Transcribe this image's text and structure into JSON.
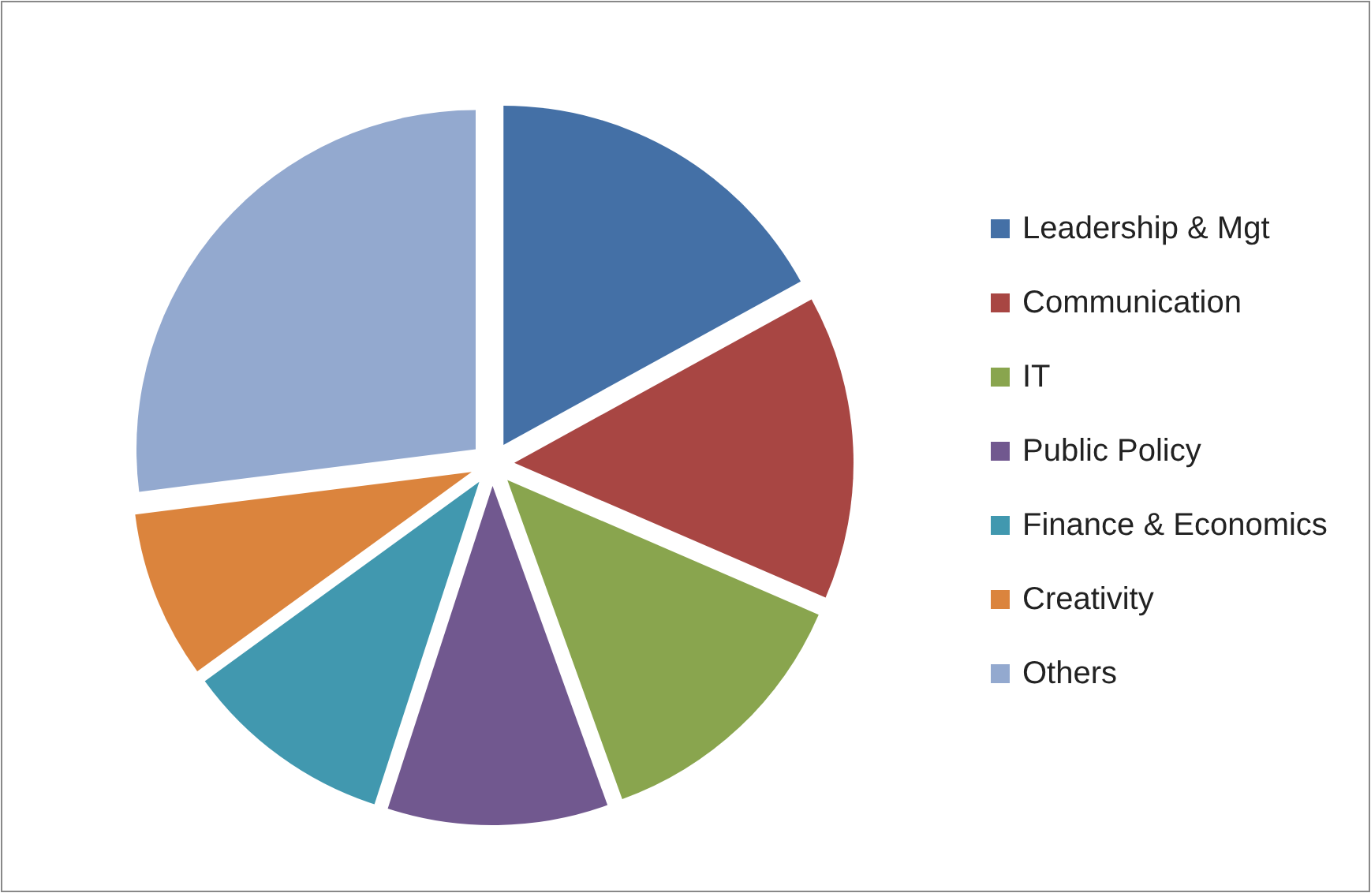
{
  "chart_data": {
    "type": "pie",
    "categories": [
      "Leadership & Mgt",
      "Communication",
      "IT",
      "Public Policy",
      "Finance & Economics",
      "Creativity",
      "Others"
    ],
    "values": [
      17,
      14.5,
      13,
      10.5,
      10,
      8,
      27
    ],
    "colors": [
      "#4470a6",
      "#a84643",
      "#89a54e",
      "#71588f",
      "#4198af",
      "#db843d",
      "#93a9cf"
    ],
    "legend": "right"
  }
}
